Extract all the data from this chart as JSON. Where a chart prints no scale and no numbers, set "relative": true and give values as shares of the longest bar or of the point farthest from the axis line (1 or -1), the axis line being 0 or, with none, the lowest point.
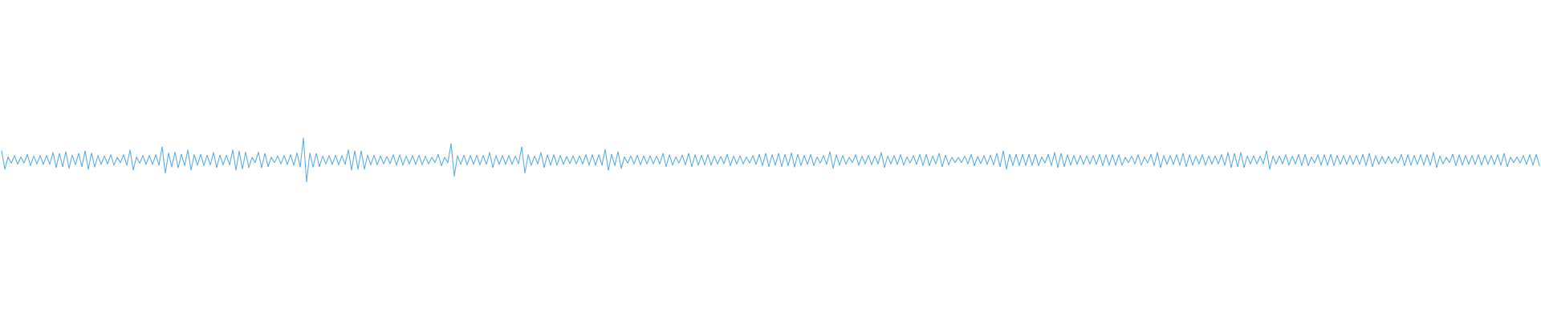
{
  "chart_data": {
    "type": "line",
    "relative": true,
    "color": "#5dade2",
    "categories": [
      null,
      null,
      null,
      null,
      null,
      null,
      null,
      null,
      null,
      null,
      null,
      null,
      null,
      null,
      null,
      null,
      null,
      null,
      null,
      null,
      null,
      null,
      null,
      null,
      null,
      null,
      null,
      null,
      null,
      null,
      null,
      null,
      null,
      null,
      null,
      null,
      null,
      null,
      null,
      null,
      null,
      null,
      null,
      null,
      null,
      null,
      null,
      null,
      null,
      null,
      null,
      null,
      null,
      null,
      null,
      null,
      null,
      null,
      null,
      null,
      null,
      null,
      null,
      null,
      null,
      null,
      null,
      null,
      null,
      null,
      null,
      null,
      null,
      null,
      null,
      null,
      null,
      null,
      null,
      null,
      null,
      null,
      null,
      null,
      null,
      null,
      null,
      null,
      null,
      null,
      null,
      null,
      null,
      null,
      null,
      null,
      null,
      null,
      null,
      null,
      null,
      null,
      null,
      null,
      null,
      null,
      null,
      null,
      null,
      null,
      null,
      null,
      null,
      null,
      null,
      null,
      null,
      null,
      null,
      null,
      null,
      null,
      null,
      null,
      null,
      null,
      null,
      null,
      null,
      null,
      null,
      null,
      null,
      null,
      null,
      null,
      null,
      null,
      null,
      null,
      null,
      null,
      null,
      null,
      null,
      null,
      null,
      null,
      null,
      null,
      null,
      null,
      null,
      null,
      null,
      null,
      null,
      null,
      null,
      null,
      null,
      null,
      null,
      null,
      null,
      null,
      null,
      null,
      null,
      null,
      null,
      null,
      null,
      null,
      null,
      null,
      null,
      null,
      null,
      null,
      null,
      null,
      null,
      null,
      null,
      null,
      null,
      null,
      null,
      null,
      null,
      null,
      null,
      null,
      null,
      null,
      null,
      null,
      null,
      null,
      null,
      null,
      null,
      null,
      null,
      null,
      null,
      null,
      null,
      null,
      null,
      null,
      null,
      null,
      null,
      null,
      null,
      null,
      null,
      null,
      null,
      null,
      null,
      null,
      null,
      null,
      null,
      null,
      null,
      null,
      null,
      null,
      null,
      null,
      null,
      null,
      null,
      null,
      null,
      null,
      null,
      null,
      null,
      null,
      null,
      null,
      null,
      null,
      null,
      null,
      null,
      null,
      null,
      null,
      null,
      null,
      null,
      null,
      null,
      null,
      null,
      null,
      null,
      null,
      null,
      null,
      null,
      null,
      null,
      null,
      null,
      null,
      null,
      null,
      null,
      null,
      null,
      null,
      null,
      null,
      null,
      null,
      null,
      null,
      null,
      null,
      null,
      null,
      null,
      null,
      null,
      null,
      null,
      null,
      null,
      null,
      null,
      null,
      null,
      null,
      null,
      null,
      null,
      null,
      null,
      null,
      null,
      null,
      null,
      null,
      null,
      null,
      null,
      null,
      null,
      null,
      null,
      null,
      null,
      null,
      null,
      null,
      null,
      null,
      null,
      null,
      null,
      null,
      null,
      null,
      null,
      null,
      null,
      null,
      null,
      null,
      null,
      null,
      null,
      null,
      null,
      null,
      null,
      null,
      null,
      null,
      null,
      null,
      null,
      null,
      null,
      null,
      null,
      null,
      null,
      null,
      null,
      null,
      null,
      null,
      null,
      null,
      null,
      null,
      null,
      null,
      null,
      null,
      null,
      null,
      null,
      null,
      null,
      null,
      null,
      null,
      null,
      null,
      null,
      null,
      null,
      null,
      null,
      null,
      null,
      null,
      null,
      null,
      null,
      null,
      null,
      null,
      null,
      null,
      null,
      null,
      null,
      null,
      null,
      null,
      null,
      null,
      null,
      null,
      null,
      null,
      null,
      null,
      null,
      null,
      null,
      null,
      null,
      null,
      null,
      null,
      null,
      null,
      null,
      null,
      null,
      null,
      null,
      null,
      null,
      null,
      null,
      null,
      null,
      null,
      null,
      null,
      null,
      null,
      null,
      null,
      null,
      null,
      null,
      null,
      null,
      null,
      null,
      null,
      null,
      null,
      null,
      null,
      null,
      null,
      null,
      null,
      null,
      null,
      null,
      null,
      null,
      null,
      null,
      null,
      null,
      null,
      null,
      null,
      null,
      null,
      null,
      null,
      null,
      null,
      null,
      null,
      null,
      null,
      null,
      null,
      null,
      null,
      null,
      null
    ],
    "values": [
      0.71,
      0.29,
      0.57,
      0.43,
      0.6,
      0.4,
      0.57,
      0.43,
      0.63,
      0.37,
      0.59,
      0.41,
      0.6,
      0.4,
      0.6,
      0.4,
      0.67,
      0.33,
      0.65,
      0.35,
      0.69,
      0.31,
      0.61,
      0.39,
      0.65,
      0.35,
      0.71,
      0.29,
      0.66,
      0.34,
      0.6,
      0.4,
      0.59,
      0.41,
      0.62,
      0.38,
      0.56,
      0.44,
      0.62,
      0.38,
      0.73,
      0.27,
      0.57,
      0.43,
      0.6,
      0.4,
      0.6,
      0.4,
      0.62,
      0.38,
      0.8,
      0.2,
      0.66,
      0.34,
      0.68,
      0.32,
      0.63,
      0.37,
      0.73,
      0.27,
      0.62,
      0.38,
      0.63,
      0.37,
      0.61,
      0.39,
      0.67,
      0.33,
      0.61,
      0.39,
      0.61,
      0.39,
      0.73,
      0.27,
      0.7,
      0.3,
      0.68,
      0.32,
      0.56,
      0.44,
      0.68,
      0.32,
      0.65,
      0.35,
      0.56,
      0.44,
      0.59,
      0.41,
      0.6,
      0.4,
      0.62,
      0.38,
      0.66,
      0.34,
      1.0,
      0.0,
      0.66,
      0.34,
      0.65,
      0.35,
      0.59,
      0.41,
      0.6,
      0.4,
      0.61,
      0.39,
      0.6,
      0.4,
      0.73,
      0.27,
      0.71,
      0.29,
      0.71,
      0.29,
      0.61,
      0.39,
      0.61,
      0.39,
      0.59,
      0.41,
      0.58,
      0.42,
      0.62,
      0.38,
      0.62,
      0.38,
      0.59,
      0.41,
      0.6,
      0.4,
      0.61,
      0.39,
      0.59,
      0.41,
      0.56,
      0.44,
      0.63,
      0.37,
      0.56,
      0.44,
      0.87,
      0.13,
      0.6,
      0.4,
      0.61,
      0.39,
      0.6,
      0.4,
      0.61,
      0.39,
      0.6,
      0.4,
      0.67,
      0.33,
      0.6,
      0.4,
      0.6,
      0.4,
      0.6,
      0.4,
      0.59,
      0.41,
      0.8,
      0.2,
      0.62,
      0.38,
      0.59,
      0.41,
      0.67,
      0.33,
      0.62,
      0.38,
      0.62,
      0.38,
      0.6,
      0.4,
      0.58,
      0.42,
      0.59,
      0.41,
      0.59,
      0.41,
      0.62,
      0.38,
      0.62,
      0.38,
      0.62,
      0.38,
      0.74,
      0.26,
      0.63,
      0.37,
      0.69,
      0.31,
      0.57,
      0.43,
      0.59,
      0.41,
      0.61,
      0.39,
      0.59,
      0.41,
      0.59,
      0.41,
      0.59,
      0.41,
      0.65,
      0.35,
      0.62,
      0.38,
      0.57,
      0.43,
      0.61,
      0.39,
      0.65,
      0.35,
      0.62,
      0.38,
      0.61,
      0.39,
      0.62,
      0.38,
      0.59,
      0.41,
      0.58,
      0.42,
      0.63,
      0.37,
      0.59,
      0.41,
      0.59,
      0.41,
      0.57,
      0.43,
      0.6,
      0.4,
      0.63,
      0.37,
      0.65,
      0.35,
      0.62,
      0.38,
      0.65,
      0.35,
      0.63,
      0.37,
      0.66,
      0.34,
      0.63,
      0.37,
      0.6,
      0.4,
      0.63,
      0.37,
      0.57,
      0.43,
      0.6,
      0.4,
      0.69,
      0.31,
      0.62,
      0.38,
      0.6,
      0.4,
      0.56,
      0.44,
      0.62,
      0.38,
      0.59,
      0.41,
      0.61,
      0.39,
      0.59,
      0.41,
      0.67,
      0.33,
      0.59,
      0.41,
      0.6,
      0.4,
      0.62,
      0.38,
      0.57,
      0.43,
      0.6,
      0.4,
      0.63,
      0.37,
      0.63,
      0.37,
      0.59,
      0.41,
      0.65,
      0.35,
      0.61,
      0.39,
      0.56,
      0.44,
      0.56,
      0.44,
      0.59,
      0.41,
      0.63,
      0.37,
      0.58,
      0.42,
      0.6,
      0.4,
      0.61,
      0.39,
      0.65,
      0.35,
      0.71,
      0.29,
      0.63,
      0.37,
      0.63,
      0.37,
      0.63,
      0.37,
      0.63,
      0.37,
      0.63,
      0.37,
      0.57,
      0.43,
      0.63,
      0.37,
      0.67,
      0.33,
      0.65,
      0.35,
      0.62,
      0.38,
      0.6,
      0.4,
      0.6,
      0.4,
      0.59,
      0.41,
      0.6,
      0.4,
      0.63,
      0.37,
      0.62,
      0.38,
      0.62,
      0.38,
      0.62,
      0.38,
      0.56,
      0.44,
      0.59,
      0.41,
      0.62,
      0.38,
      0.57,
      0.43,
      0.63,
      0.37,
      0.67,
      0.33,
      0.6,
      0.4,
      0.6,
      0.4,
      0.62,
      0.38,
      0.65,
      0.35,
      0.62,
      0.38,
      0.59,
      0.41,
      0.62,
      0.38,
      0.59,
      0.41,
      0.59,
      0.41,
      0.62,
      0.38,
      0.67,
      0.33,
      0.65,
      0.35,
      0.67,
      0.33,
      0.59,
      0.41,
      0.59,
      0.41,
      0.59,
      0.41,
      0.71,
      0.29,
      0.59,
      0.41,
      0.59,
      0.41,
      0.62,
      0.38,
      0.59,
      0.41,
      0.63,
      0.37,
      0.63,
      0.37,
      0.57,
      0.43,
      0.62,
      0.38,
      0.62,
      0.38,
      0.63,
      0.37,
      0.6,
      0.4,
      0.6,
      0.4,
      0.6,
      0.4,
      0.6,
      0.4,
      0.63,
      0.37,
      0.65,
      0.35,
      0.6,
      0.4,
      0.58,
      0.42,
      0.58,
      0.42,
      0.57,
      0.43,
      0.63,
      0.37,
      0.62,
      0.38,
      0.6,
      0.4,
      0.62,
      0.38,
      0.62,
      0.38,
      0.67,
      0.33,
      0.59,
      0.41,
      0.56,
      0.44,
      0.63,
      0.37,
      0.62,
      0.38,
      0.6,
      0.4,
      0.6,
      0.4,
      0.62,
      0.38,
      0.6,
      0.4,
      0.6,
      0.4,
      0.62,
      0.38,
      0.65,
      0.35,
      0.56,
      0.44,
      0.57,
      0.43,
      0.6,
      0.4,
      0.62,
      0.38,
      0.63,
      0.37
    ]
  }
}
